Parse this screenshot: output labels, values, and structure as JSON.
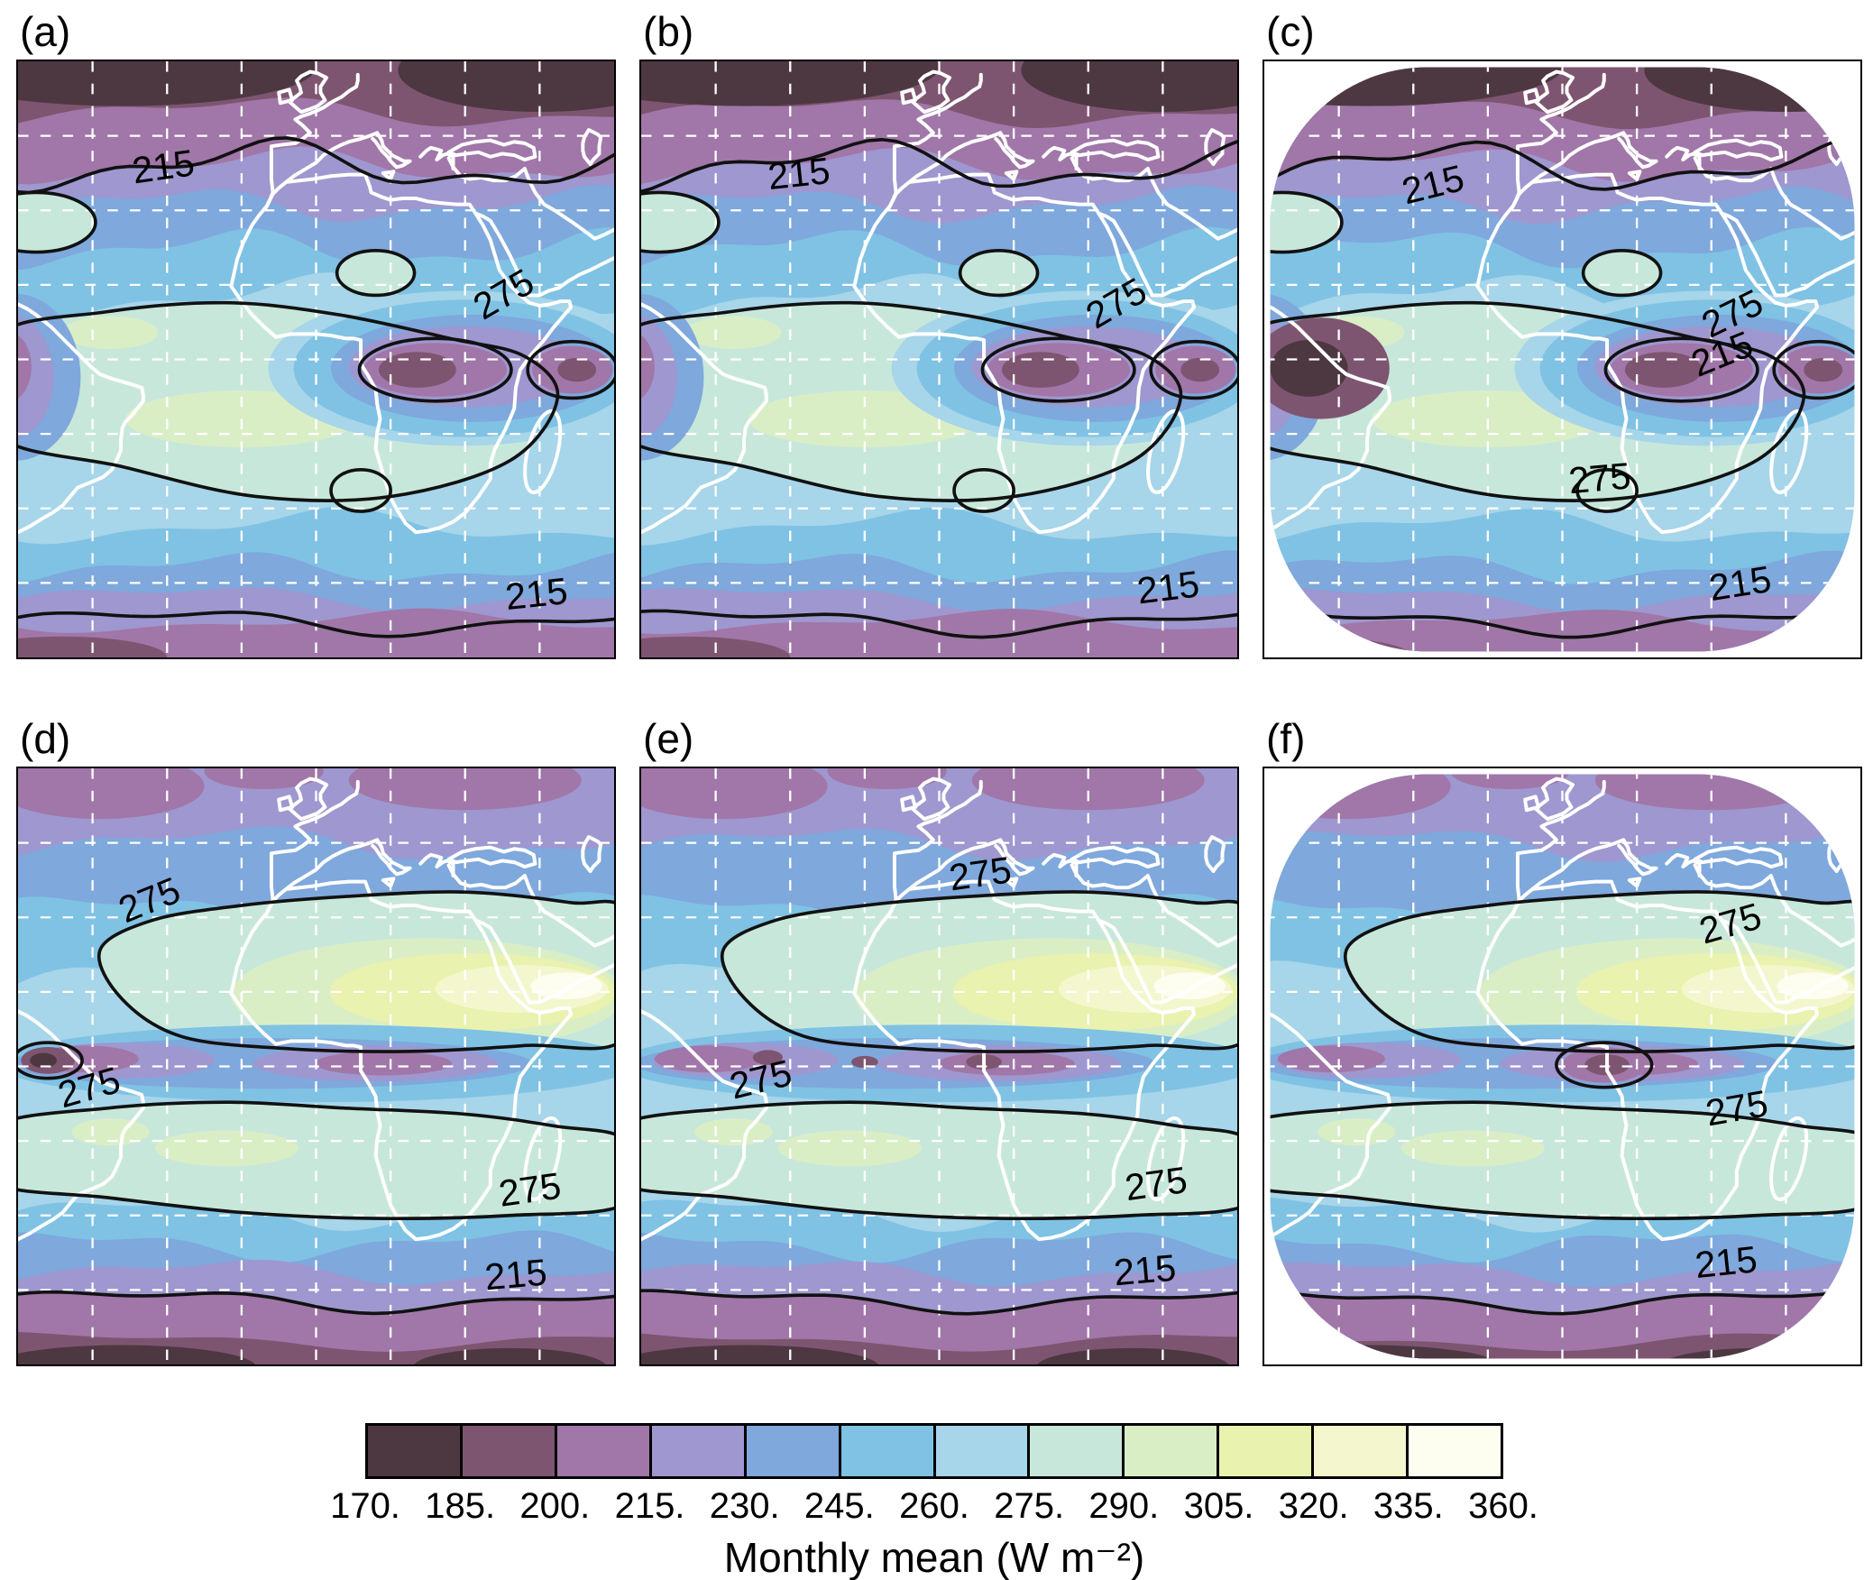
{
  "figure": {
    "panel_labels": [
      "(a)",
      "(b)",
      "(c)",
      "(d)",
      "(e)",
      "(f)"
    ],
    "colorbar": {
      "title": "Monthly mean (W m⁻²)",
      "tick_labels": [
        "170.",
        "185.",
        "200.",
        "215.",
        "230.",
        "245.",
        "260.",
        "275.",
        "290.",
        "305.",
        "320.",
        "335.",
        "360."
      ]
    }
  },
  "chart_data": {
    "type": "heatmap",
    "subtype": "filled-contour-map-panels",
    "panels": [
      {
        "label": "(a)",
        "projection": "rectangular",
        "contour_labels": [
          "215",
          "275",
          "215"
        ]
      },
      {
        "label": "(b)",
        "projection": "rectangular",
        "contour_labels": [
          "215",
          "275",
          "215"
        ]
      },
      {
        "label": "(c)",
        "projection": "disc",
        "contour_labels": [
          "215",
          "275",
          "215",
          "275",
          "215"
        ]
      },
      {
        "label": "(d)",
        "projection": "rectangular",
        "contour_labels": [
          "275",
          "275",
          "275",
          "215"
        ]
      },
      {
        "label": "(e)",
        "projection": "rectangular",
        "contour_labels": [
          "275",
          "275",
          "275",
          "215"
        ]
      },
      {
        "label": "(f)",
        "projection": "disc",
        "contour_labels": [
          "275",
          "275",
          "215"
        ]
      }
    ],
    "contour_levels": [
      215,
      275
    ],
    "colorbar": {
      "label": "Monthly mean (W m⁻²)",
      "boundaries": [
        170,
        185,
        200,
        215,
        230,
        245,
        260,
        275,
        290,
        305,
        320,
        335,
        360
      ],
      "colors": [
        "#4d3842",
        "#7e5570",
        "#a077a8",
        "#9f97cf",
        "#7fa8dc",
        "#7fc2e4",
        "#a7d5e9",
        "#c8e7db",
        "#daeec6",
        "#e9f2ae",
        "#f4f7cd",
        "#fdfdf0"
      ]
    },
    "grid": {
      "graticule": "dashed-white",
      "lines_per_axis": 7
    },
    "coastlines": "white",
    "field_range": [
      170,
      360
    ]
  }
}
